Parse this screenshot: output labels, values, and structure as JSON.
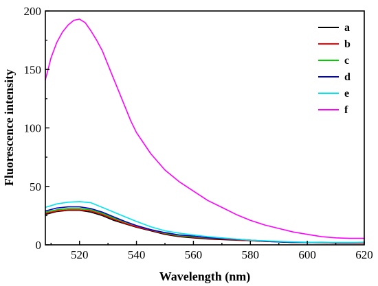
{
  "chart_data": {
    "type": "line",
    "title": "",
    "xlabel": "Wavelength (nm)",
    "ylabel": "Fluorescence intensity",
    "xlim": [
      508,
      620
    ],
    "ylim": [
      0,
      200
    ],
    "xticks": [
      520,
      540,
      560,
      580,
      600,
      620
    ],
    "yticks": [
      0,
      50,
      100,
      150,
      200
    ],
    "grid": false,
    "legend_position": "top-right",
    "series": [
      {
        "name": "a",
        "color": "#000000",
        "x": [
          508,
          512,
          516,
          520,
          524,
          528,
          532,
          536,
          540,
          545,
          550,
          555,
          560,
          565,
          570,
          575,
          580,
          585,
          590,
          595,
          600,
          605,
          610,
          615,
          620
        ],
        "y": [
          26,
          28.5,
          29.5,
          29.5,
          28,
          25,
          21,
          18,
          15,
          12,
          9,
          7,
          6,
          5,
          4.5,
          4,
          3.5,
          3,
          2.5,
          2,
          2,
          1.8,
          1.5,
          1.5,
          1.5
        ]
      },
      {
        "name": "b",
        "color": "#ff0000",
        "x": [
          508,
          512,
          516,
          520,
          524,
          528,
          532,
          536,
          540,
          545,
          550,
          555,
          560,
          565,
          570,
          575,
          580,
          585,
          590,
          595,
          600,
          605,
          610,
          615,
          620
        ],
        "y": [
          27,
          29,
          30,
          30,
          29,
          26,
          22,
          18.5,
          15.5,
          12.5,
          9.5,
          7.5,
          6.5,
          5.5,
          5,
          4.2,
          3.5,
          3,
          2.5,
          2,
          2,
          1.8,
          1.5,
          1.5,
          1.5
        ]
      },
      {
        "name": "c",
        "color": "#00cc00",
        "x": [
          508,
          512,
          516,
          520,
          524,
          528,
          532,
          536,
          540,
          545,
          550,
          555,
          560,
          565,
          570,
          575,
          580,
          585,
          590,
          595,
          600,
          605,
          610,
          615,
          620
        ],
        "y": [
          28,
          30,
          31,
          31,
          30,
          27,
          23,
          19.5,
          16.5,
          13,
          10,
          8,
          7,
          6,
          5.5,
          4.8,
          4,
          3.2,
          2.5,
          2.2,
          2,
          2,
          1.8,
          1.8,
          2
        ]
      },
      {
        "name": "d",
        "color": "#0000cc",
        "x": [
          508,
          512,
          516,
          520,
          524,
          528,
          532,
          536,
          540,
          545,
          550,
          555,
          560,
          565,
          570,
          575,
          580,
          585,
          590,
          595,
          600,
          605,
          610,
          615,
          620
        ],
        "y": [
          29,
          31.5,
          32.5,
          32.5,
          31,
          28,
          24,
          20,
          16.5,
          13,
          10.5,
          8.5,
          7.5,
          6.2,
          5.5,
          4.8,
          4,
          3.2,
          2.6,
          2.2,
          2,
          2,
          1.8,
          1.8,
          2
        ]
      },
      {
        "name": "e",
        "color": "#00e5ee",
        "x": [
          508,
          512,
          516,
          520,
          524,
          528,
          532,
          536,
          540,
          545,
          550,
          555,
          560,
          565,
          570,
          575,
          580,
          585,
          590,
          595,
          600,
          605,
          610,
          615,
          620
        ],
        "y": [
          32,
          35,
          36.5,
          37,
          36,
          32,
          28,
          24,
          20,
          15.5,
          12,
          10,
          8.5,
          7,
          6,
          5,
          4,
          3.5,
          3,
          2.5,
          2.2,
          2,
          2,
          2,
          2
        ]
      },
      {
        "name": "f",
        "color": "#ff00ff",
        "x": [
          508,
          510,
          512,
          514,
          516,
          518,
          520,
          522,
          524,
          526,
          528,
          530,
          532,
          534,
          536,
          538,
          540,
          545,
          550,
          555,
          560,
          565,
          570,
          575,
          580,
          585,
          590,
          595,
          600,
          605,
          610,
          615,
          620
        ],
        "y": [
          141,
          160,
          173,
          182,
          188,
          192,
          193,
          190,
          183,
          175,
          166,
          154,
          142,
          130,
          118,
          106,
          96,
          78,
          64,
          54,
          46,
          38,
          32,
          26,
          21,
          17,
          14,
          11,
          9,
          7,
          6,
          5.5,
          5.5
        ]
      }
    ]
  }
}
